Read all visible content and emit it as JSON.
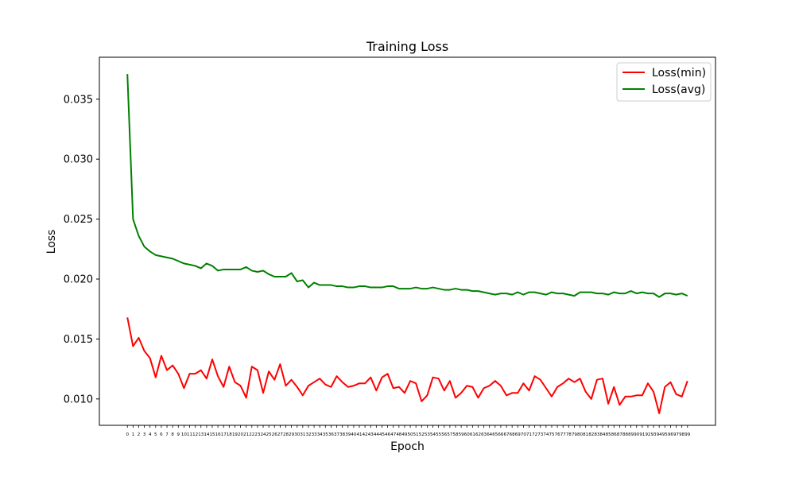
{
  "chart_data": {
    "type": "line",
    "title": "Training Loss",
    "xlabel": "Epoch",
    "ylabel": "Loss",
    "xlim": [
      -4.95,
      103.95
    ],
    "ylim": [
      0.0078,
      0.0385
    ],
    "yticks": [
      0.01,
      0.015,
      0.02,
      0.025,
      0.03,
      0.035
    ],
    "ytick_labels": [
      "0.010",
      "0.015",
      "0.020",
      "0.025",
      "0.030",
      "0.035"
    ],
    "xticks": [
      0,
      1,
      2,
      3,
      4,
      5,
      6,
      7,
      8,
      9,
      10,
      11,
      12,
      13,
      14,
      15,
      16,
      17,
      18,
      19,
      20,
      21,
      22,
      23,
      24,
      25,
      26,
      27,
      28,
      29,
      30,
      31,
      32,
      33,
      34,
      35,
      36,
      37,
      38,
      39,
      40,
      41,
      42,
      43,
      44,
      45,
      46,
      47,
      48,
      49,
      50,
      51,
      52,
      53,
      54,
      55,
      56,
      57,
      58,
      59,
      60,
      61,
      62,
      63,
      64,
      65,
      66,
      67,
      68,
      69,
      70,
      71,
      72,
      73,
      74,
      75,
      76,
      77,
      78,
      79,
      80,
      81,
      82,
      83,
      84,
      85,
      86,
      87,
      88,
      89,
      90,
      91,
      92,
      93,
      94,
      95,
      96,
      97,
      98,
      99
    ],
    "grid": false,
    "legend_position": "top-right",
    "series": [
      {
        "name": "Loss(min)",
        "color": "#ff0000",
        "values": [
          0.0168,
          0.0144,
          0.0151,
          0.014,
          0.0134,
          0.0118,
          0.0136,
          0.0124,
          0.0128,
          0.0121,
          0.0109,
          0.0121,
          0.0121,
          0.0124,
          0.0117,
          0.0133,
          0.0119,
          0.011,
          0.0127,
          0.0114,
          0.0111,
          0.0101,
          0.0127,
          0.0124,
          0.0105,
          0.0123,
          0.0116,
          0.0129,
          0.0111,
          0.0116,
          0.011,
          0.0103,
          0.0111,
          0.0114,
          0.0117,
          0.0112,
          0.011,
          0.0119,
          0.0114,
          0.011,
          0.0111,
          0.0113,
          0.0113,
          0.0118,
          0.0107,
          0.0118,
          0.0121,
          0.0109,
          0.011,
          0.0105,
          0.0115,
          0.0113,
          0.0098,
          0.0103,
          0.0118,
          0.0117,
          0.0107,
          0.0115,
          0.0101,
          0.0105,
          0.0111,
          0.011,
          0.0101,
          0.0109,
          0.0111,
          0.0115,
          0.0111,
          0.0103,
          0.0105,
          0.0105,
          0.0113,
          0.0107,
          0.0119,
          0.0116,
          0.0109,
          0.0102,
          0.011,
          0.0113,
          0.0117,
          0.0114,
          0.0117,
          0.0106,
          0.01,
          0.0116,
          0.0117,
          0.0096,
          0.011,
          0.0095,
          0.0102,
          0.0102,
          0.0103,
          0.0103,
          0.0113,
          0.0106,
          0.0088,
          0.011,
          0.0114,
          0.0104,
          0.0102,
          0.0115
        ]
      },
      {
        "name": "Loss(avg)",
        "color": "#008000",
        "values": [
          0.0371,
          0.025,
          0.0236,
          0.0227,
          0.0223,
          0.022,
          0.0219,
          0.0218,
          0.0217,
          0.0215,
          0.0213,
          0.0212,
          0.0211,
          0.0209,
          0.0213,
          0.0211,
          0.0207,
          0.0208,
          0.0208,
          0.0208,
          0.0208,
          0.021,
          0.0207,
          0.0206,
          0.0207,
          0.0204,
          0.0202,
          0.0202,
          0.0202,
          0.0205,
          0.0198,
          0.0199,
          0.0193,
          0.0197,
          0.0195,
          0.0195,
          0.0195,
          0.0194,
          0.0194,
          0.0193,
          0.0193,
          0.0194,
          0.0194,
          0.0193,
          0.0193,
          0.0193,
          0.0194,
          0.0194,
          0.0192,
          0.0192,
          0.0192,
          0.0193,
          0.0192,
          0.0192,
          0.0193,
          0.0192,
          0.0191,
          0.0191,
          0.0192,
          0.0191,
          0.0191,
          0.019,
          0.019,
          0.0189,
          0.0188,
          0.0187,
          0.0188,
          0.0188,
          0.0187,
          0.0189,
          0.0187,
          0.0189,
          0.0189,
          0.0188,
          0.0187,
          0.0189,
          0.0188,
          0.0188,
          0.0187,
          0.0186,
          0.0189,
          0.0189,
          0.0189,
          0.0188,
          0.0188,
          0.0187,
          0.0189,
          0.0188,
          0.0188,
          0.019,
          0.0188,
          0.0189,
          0.0188,
          0.0188,
          0.0185,
          0.0188,
          0.0188,
          0.0187,
          0.0188,
          0.0186
        ]
      }
    ]
  }
}
